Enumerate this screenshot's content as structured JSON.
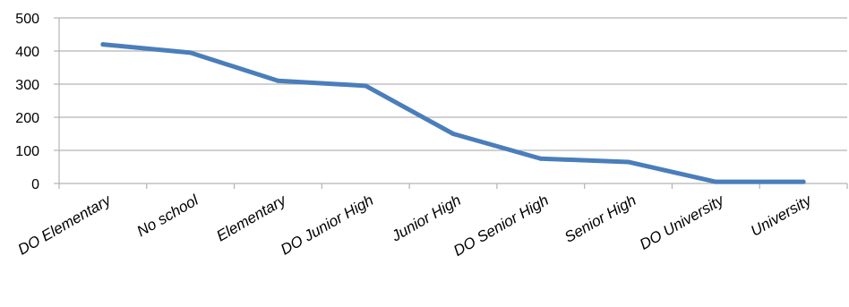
{
  "chart_data": {
    "type": "line",
    "categories": [
      "DO Elementary",
      "No school",
      "Elementary",
      "DO Junior High",
      "Junior High",
      "DO Senior High",
      "Senior High",
      "DO University",
      "University"
    ],
    "series": [
      {
        "values": [
          420,
          395,
          310,
          295,
          150,
          75,
          65,
          5,
          5
        ]
      }
    ],
    "ylim": [
      0,
      500
    ],
    "yticks": [
      0,
      100,
      200,
      300,
      400,
      500
    ],
    "grid": true,
    "legend": "none",
    "line_color": "#4a7ebb",
    "grid_color": "#b3b3b3"
  }
}
